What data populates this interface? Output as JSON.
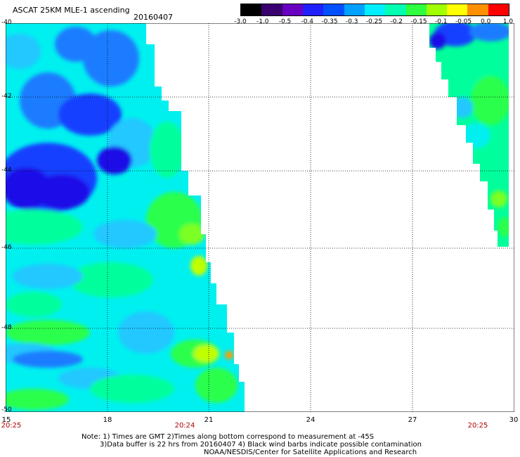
{
  "header": {
    "title": "ASCAT 25KM MLE-1 ascending",
    "date": "20160407"
  },
  "colorbar": {
    "labels": [
      "-3.0",
      "-1.0",
      "-0.5",
      "-0.4",
      "-0.35",
      "-0.3",
      "-0.25",
      "-0.2",
      "-0.15",
      "-0.1",
      "-0.05",
      "0.0",
      "1.0"
    ],
    "colors": [
      "#000000",
      "#3a0070",
      "#6a00c0",
      "#2020ff",
      "#0050ff",
      "#00a0ff",
      "#00eeff",
      "#00ffb0",
      "#30ff40",
      "#a0ff00",
      "#ffff00",
      "#ff9000",
      "#ff0000"
    ]
  },
  "map": {
    "lat_labels": [
      "-40",
      "-42",
      "-44",
      "-46",
      "-48",
      "-50"
    ],
    "lon_labels": [
      "15",
      "18",
      "21",
      "24",
      "27",
      "30"
    ],
    "pass_times": [
      "20:25",
      "20:24",
      "20:25"
    ],
    "field_colors": {
      "deep_blue": "#1a10e8",
      "blue": "#1540ff",
      "mid_blue": "#1f7cff",
      "sky": "#20c8ff",
      "cyan": "#00f0f0",
      "aqua_green": "#00ff9c",
      "green": "#2cff4c",
      "light_green": "#7cff20",
      "yellow_green": "#c0ff00",
      "yellow": "#ffff00",
      "orange": "#ff9c00"
    }
  },
  "notes": {
    "line1": "Note: 1) Times are GMT 2)Times along bottom correspond to measurement at -45S",
    "line2": "3)Data buffer is 22 hrs from 20160407 4) Black wind barbs indicate possible contamination",
    "line3": "NOAA/NESDIS/Center for Satellite Applications and Research"
  }
}
